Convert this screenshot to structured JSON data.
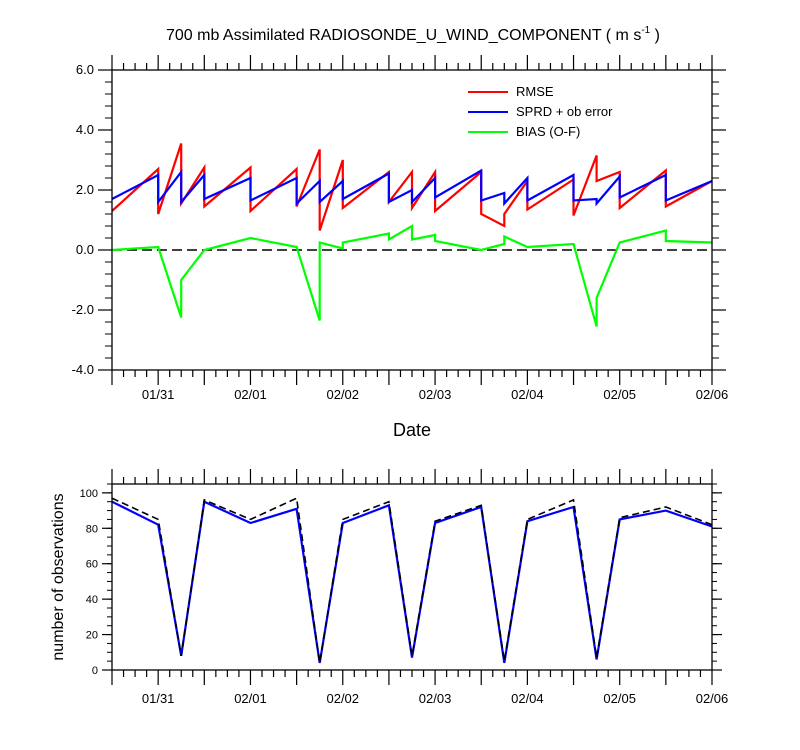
{
  "chart_data": [
    {
      "type": "line",
      "title_main": "700 mb Assimilated RADIOSONDE_U_WIND_COMPONENT ( m s",
      "title_sup": "-1",
      "title_end": " )",
      "xlabel": "Date",
      "ylabel": "",
      "xlim": [
        0,
        6.5
      ],
      "ylim": [
        -4,
        6
      ],
      "yticks": [
        6,
        4,
        2,
        0,
        -2,
        -4
      ],
      "ytick_labels": [
        "6.0",
        "4.0",
        "2.0",
        "0.0",
        "-2.0",
        "-4.0"
      ],
      "xtick_labels": [
        "01/31",
        "02/01",
        "02/02",
        "02/03",
        "02/04",
        "02/05",
        "02/06"
      ],
      "xtick_positions": [
        0.5,
        1.5,
        2.5,
        3.5,
        4.5,
        5.5,
        6.5
      ],
      "zero_line": true,
      "legend_position": "top-right",
      "series": [
        {
          "name": "RMSE",
          "color": "#ff0000",
          "points": [
            [
              0,
              1.3
            ],
            [
              0.5,
              2.7
            ],
            [
              0.5,
              1.2
            ],
            [
              0.75,
              3.55
            ],
            [
              0.75,
              1.55
            ],
            [
              1.0,
              2.75
            ],
            [
              1.0,
              1.45
            ],
            [
              1.5,
              2.75
            ],
            [
              1.5,
              1.3
            ],
            [
              2.0,
              2.7
            ],
            [
              2.0,
              1.45
            ],
            [
              2.25,
              3.35
            ],
            [
              2.25,
              0.65
            ],
            [
              2.5,
              3.0
            ],
            [
              2.5,
              1.4
            ],
            [
              3.0,
              2.6
            ],
            [
              3.0,
              1.6
            ],
            [
              3.25,
              2.6
            ],
            [
              3.25,
              1.4
            ],
            [
              3.5,
              2.6
            ],
            [
              3.5,
              1.3
            ],
            [
              4.0,
              2.6
            ],
            [
              4.0,
              1.2
            ],
            [
              4.25,
              0.8
            ],
            [
              4.25,
              1.2
            ],
            [
              4.5,
              2.3
            ],
            [
              4.5,
              1.35
            ],
            [
              5.0,
              2.35
            ],
            [
              5.0,
              1.15
            ],
            [
              5.25,
              3.15
            ],
            [
              5.25,
              2.3
            ],
            [
              5.5,
              2.6
            ],
            [
              5.5,
              1.4
            ],
            [
              6.0,
              2.65
            ],
            [
              6.0,
              1.45
            ],
            [
              6.5,
              2.3
            ]
          ]
        },
        {
          "name": "SPRD + ob error",
          "color": "#0000ff",
          "points": [
            [
              0,
              1.7
            ],
            [
              0.5,
              2.5
            ],
            [
              0.5,
              1.6
            ],
            [
              0.75,
              2.6
            ],
            [
              0.75,
              1.6
            ],
            [
              1.0,
              2.5
            ],
            [
              1.0,
              1.7
            ],
            [
              1.5,
              2.4
            ],
            [
              1.5,
              1.65
            ],
            [
              2.0,
              2.4
            ],
            [
              2.0,
              1.55
            ],
            [
              2.25,
              2.3
            ],
            [
              2.25,
              1.6
            ],
            [
              2.5,
              2.3
            ],
            [
              2.5,
              1.7
            ],
            [
              3.0,
              2.55
            ],
            [
              3.0,
              1.6
            ],
            [
              3.25,
              2.0
            ],
            [
              3.25,
              1.6
            ],
            [
              3.5,
              2.4
            ],
            [
              3.5,
              1.75
            ],
            [
              4.0,
              2.65
            ],
            [
              4.0,
              1.65
            ],
            [
              4.25,
              1.9
            ],
            [
              4.25,
              1.55
            ],
            [
              4.5,
              2.4
            ],
            [
              4.5,
              1.65
            ],
            [
              5.0,
              2.5
            ],
            [
              5.0,
              1.65
            ],
            [
              5.25,
              1.7
            ],
            [
              5.25,
              1.55
            ],
            [
              5.5,
              2.45
            ],
            [
              5.5,
              1.75
            ],
            [
              6.0,
              2.5
            ],
            [
              6.0,
              1.65
            ],
            [
              6.5,
              2.3
            ]
          ]
        },
        {
          "name": "BIAS (O-F)",
          "color": "#00ff00",
          "points": [
            [
              0,
              0.0
            ],
            [
              0.5,
              0.1
            ],
            [
              0.75,
              -2.25
            ],
            [
              0.75,
              -1.0
            ],
            [
              1.0,
              0.0
            ],
            [
              1.5,
              0.4
            ],
            [
              2.0,
              0.1
            ],
            [
              2.25,
              -2.35
            ],
            [
              2.25,
              0.25
            ],
            [
              2.5,
              0.05
            ],
            [
              2.5,
              0.25
            ],
            [
              3.0,
              0.55
            ],
            [
              3.0,
              0.35
            ],
            [
              3.25,
              0.8
            ],
            [
              3.25,
              0.35
            ],
            [
              3.5,
              0.5
            ],
            [
              3.5,
              0.3
            ],
            [
              4.0,
              0.0
            ],
            [
              4.25,
              0.2
            ],
            [
              4.25,
              0.45
            ],
            [
              4.5,
              0.1
            ],
            [
              5.0,
              0.2
            ],
            [
              5.25,
              -2.55
            ],
            [
              5.25,
              -1.6
            ],
            [
              5.5,
              0.25
            ],
            [
              6.0,
              0.65
            ],
            [
              6.0,
              0.3
            ],
            [
              6.5,
              0.25
            ]
          ]
        }
      ]
    },
    {
      "type": "line",
      "ylabel": "number of observations",
      "xlim": [
        0,
        6.5
      ],
      "ylim": [
        0,
        105
      ],
      "yticks": [
        0,
        20,
        40,
        60,
        80,
        100
      ],
      "ytick_labels": [
        "0",
        "20",
        "40",
        "60",
        "80",
        "100"
      ],
      "xtick_labels": [
        "01/31",
        "02/01",
        "02/02",
        "02/03",
        "02/04",
        "02/05",
        "02/06"
      ],
      "xtick_positions": [
        0.5,
        1.5,
        2.5,
        3.5,
        4.5,
        5.5,
        6.5
      ],
      "series": [
        {
          "color": "#0000ff",
          "style": "solid",
          "points": [
            [
              0,
              95
            ],
            [
              0.5,
              82
            ],
            [
              0.75,
              8
            ],
            [
              1.0,
              95
            ],
            [
              1.5,
              83
            ],
            [
              2.0,
              91
            ],
            [
              2.25,
              4
            ],
            [
              2.5,
              83
            ],
            [
              3.0,
              93
            ],
            [
              3.25,
              7
            ],
            [
              3.5,
              83
            ],
            [
              4.0,
              92
            ],
            [
              4.25,
              4
            ],
            [
              4.5,
              84
            ],
            [
              5.0,
              92
            ],
            [
              5.25,
              6
            ],
            [
              5.5,
              85
            ],
            [
              6.0,
              90
            ],
            [
              6.5,
              81
            ]
          ]
        },
        {
          "color": "#000000",
          "style": "dashed",
          "points": [
            [
              0,
              97
            ],
            [
              0.5,
              85
            ],
            [
              0.75,
              8
            ],
            [
              1.0,
              96
            ],
            [
              1.5,
              85
            ],
            [
              2.0,
              97
            ],
            [
              2.25,
              4
            ],
            [
              2.5,
              85
            ],
            [
              3.0,
              95
            ],
            [
              3.25,
              8
            ],
            [
              3.5,
              84
            ],
            [
              4.0,
              93
            ],
            [
              4.25,
              5
            ],
            [
              4.5,
              85
            ],
            [
              5.0,
              96
            ],
            [
              5.25,
              7
            ],
            [
              5.5,
              86
            ],
            [
              6.0,
              92
            ],
            [
              6.5,
              82
            ]
          ]
        }
      ]
    }
  ]
}
